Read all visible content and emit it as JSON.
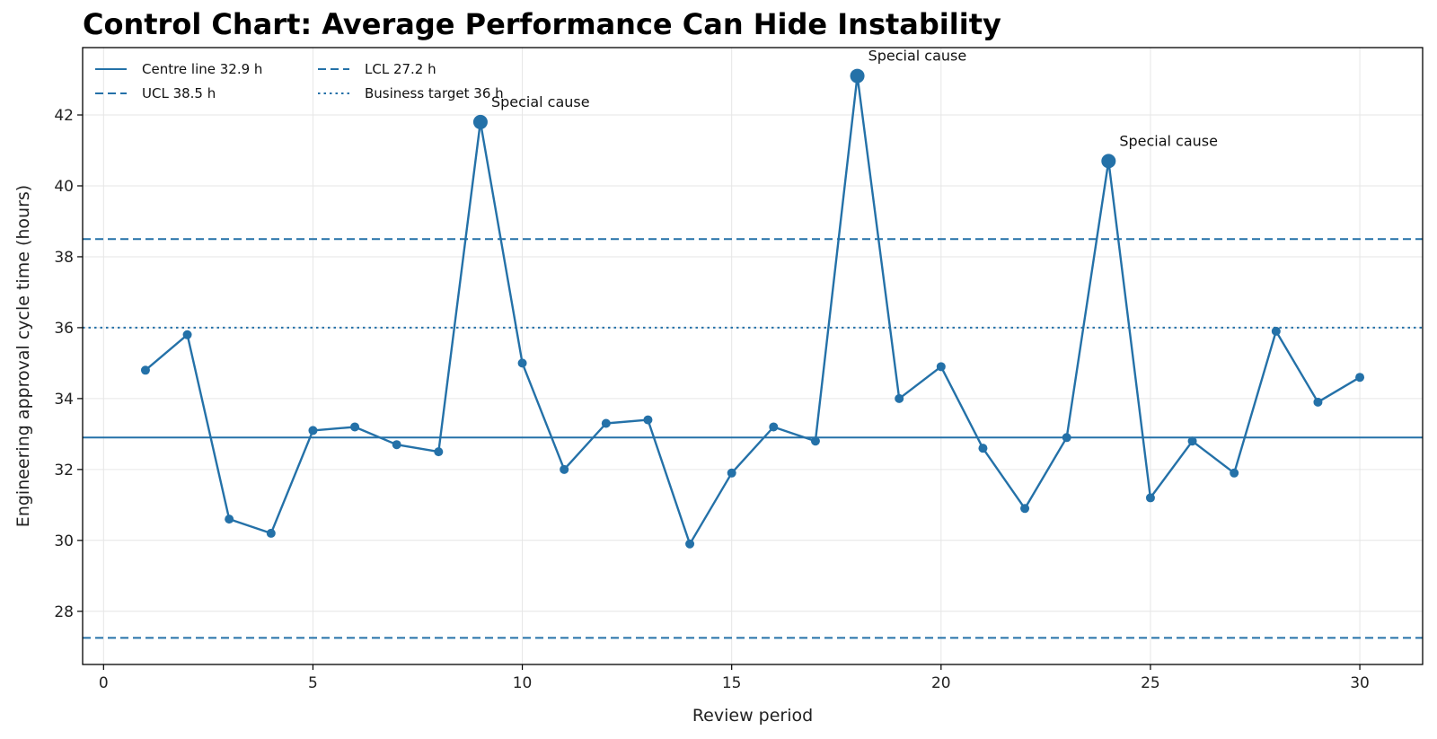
{
  "chart_data": {
    "type": "line",
    "title": "Control Chart: Average Performance Can Hide Instability",
    "xlabel": "Review period",
    "ylabel": "Engineering approval cycle time (hours)",
    "xlim": [
      -0.5,
      31.5
    ],
    "ylim": [
      26.5,
      43.9
    ],
    "xticks": [
      0,
      5,
      10,
      15,
      20,
      25,
      30
    ],
    "yticks": [
      28,
      30,
      32,
      34,
      36,
      38,
      40,
      42
    ],
    "grid": true,
    "legend_position": "top-left",
    "color": "#2471a8",
    "x": [
      1,
      2,
      3,
      4,
      5,
      6,
      7,
      8,
      9,
      10,
      11,
      12,
      13,
      14,
      15,
      16,
      17,
      18,
      19,
      20,
      21,
      22,
      23,
      24,
      25,
      26,
      27,
      28,
      29,
      30
    ],
    "y": [
      34.8,
      35.8,
      30.6,
      30.2,
      33.1,
      33.2,
      32.7,
      32.5,
      41.8,
      35.0,
      32.0,
      33.3,
      33.4,
      29.9,
      31.9,
      33.2,
      32.8,
      43.1,
      34.0,
      34.9,
      32.6,
      30.9,
      32.9,
      40.7,
      31.2,
      32.8,
      31.9,
      35.9,
      33.9,
      34.6
    ],
    "reference_lines": [
      {
        "key": "centre",
        "label": "Centre line 32.9 h",
        "value": 32.9,
        "style": "solid"
      },
      {
        "key": "ucl",
        "label": "UCL 38.5 h",
        "value": 38.5,
        "style": "dashed"
      },
      {
        "key": "lcl",
        "label": "LCL 27.2 h",
        "value": 27.25,
        "style": "dashed"
      },
      {
        "key": "target",
        "label": "Business target 36 h",
        "value": 36.0,
        "style": "dotted"
      }
    ],
    "annotations": [
      {
        "x": 9,
        "y": 41.8,
        "text": "Special cause"
      },
      {
        "x": 18,
        "y": 43.1,
        "text": "Special cause"
      },
      {
        "x": 24,
        "y": 40.7,
        "text": "Special cause"
      }
    ]
  }
}
